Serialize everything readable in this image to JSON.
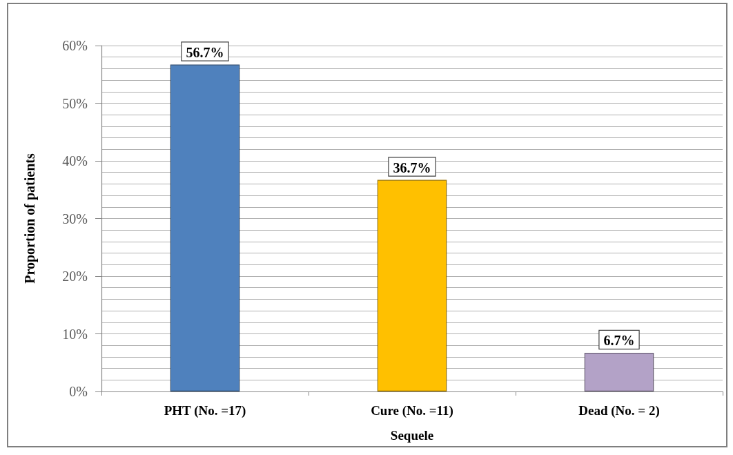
{
  "chart_data": {
    "type": "bar",
    "categories": [
      "PHT (No. =17)",
      "Cure (No. =11)",
      "Dead (No. = 2)"
    ],
    "values": [
      56.7,
      36.7,
      6.7
    ],
    "colors": [
      "#4f81bd",
      "#ffc000",
      "#b3a2c7"
    ],
    "value_labels": [
      "56.7%",
      "36.7%",
      "6.7%"
    ],
    "xlabel": "Sequele",
    "ylabel": "Proportion of patients",
    "ylim": [
      0,
      60
    ],
    "yticks": [
      {
        "value": 0,
        "label": "0%"
      },
      {
        "value": 10,
        "label": "10%"
      },
      {
        "value": 20,
        "label": "20%"
      },
      {
        "value": 30,
        "label": "30%"
      },
      {
        "value": 40,
        "label": "40%"
      },
      {
        "value": 50,
        "label": "50%"
      },
      {
        "value": 60,
        "label": "60%"
      }
    ],
    "grid": "y"
  }
}
